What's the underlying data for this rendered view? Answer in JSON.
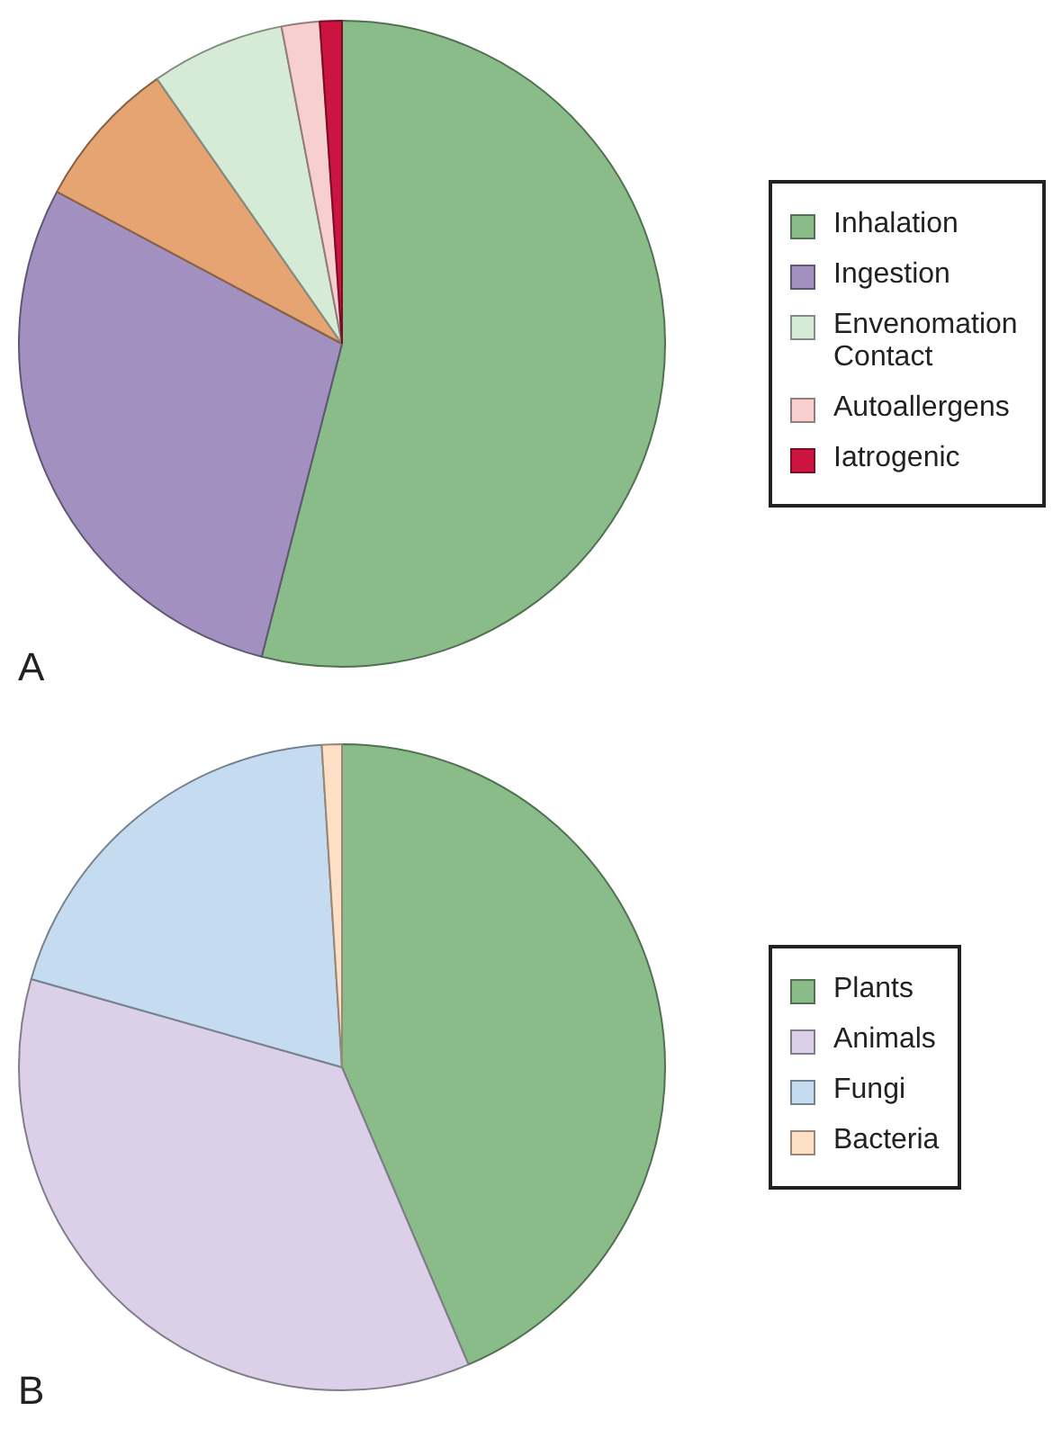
{
  "chart_data": [
    {
      "type": "pie",
      "categories": [
        "Inhalation",
        "Ingestion",
        null,
        "Envenomation Contact",
        "Autoallergens",
        "Iatrogenic"
      ],
      "values": [
        54,
        28.8,
        7.5,
        6.7,
        1.9,
        1.1
      ],
      "colors": [
        "#89bc89",
        "#a291c0",
        "#e5a472",
        "#d5ebd5",
        "#f7cfcf",
        "#cc1440"
      ],
      "legend": "right",
      "annotations": [
        "A"
      ]
    },
    {
      "type": "pie",
      "categories": [
        "Plants",
        "Animals",
        "Fungi",
        "Bacteria"
      ],
      "values": [
        43.6,
        35.8,
        19.6,
        1.0
      ],
      "colors": [
        "#89bc89",
        "#dbd0e8",
        "#c5dbef",
        "#fde0c5"
      ],
      "legend": "right",
      "annotations": [
        "B"
      ]
    }
  ]
}
